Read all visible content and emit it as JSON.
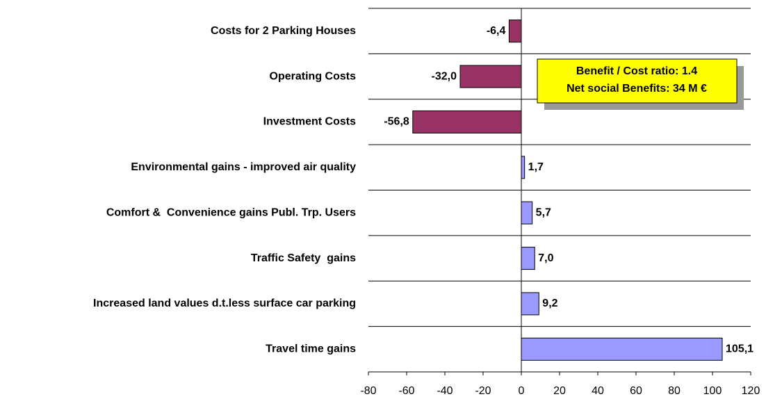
{
  "chart_data": {
    "type": "hbar",
    "categories": [
      "Costs for 2 Parking Houses",
      "Operating Costs",
      "Investment Costs",
      "Environmental gains - improved air quality",
      "Comfort &  Convenience gains Publ. Trp. Users",
      "Traffic Safety  gains",
      "Increased land values d.t.less surface car parking",
      "Travel time gains"
    ],
    "values": [
      -6.4,
      -32.0,
      -56.8,
      1.7,
      5.7,
      7.0,
      9.2,
      105.1
    ],
    "value_labels": [
      "-6,4",
      "-32,0",
      "-56,8",
      "1,7",
      "5,7",
      "7,0",
      "9,2",
      "105,1"
    ],
    "colors": [
      "#993366",
      "#993366",
      "#993366",
      "#9999ff",
      "#9999ff",
      "#9999ff",
      "#9999ff",
      "#9999ff"
    ],
    "xlim": [
      -80,
      120
    ],
    "xticks": [
      -80,
      -60,
      -40,
      -20,
      0,
      20,
      40,
      60,
      80,
      100,
      120
    ],
    "annotations": [
      "Benefit / Cost ratio: 1.4",
      "Net social Benefits: 34 M €"
    ]
  }
}
